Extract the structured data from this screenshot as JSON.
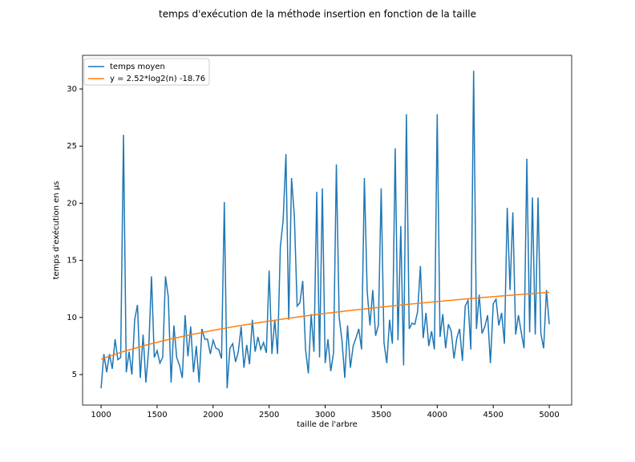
{
  "chart_data": {
    "type": "line",
    "title": "temps d'exécution de la méthode insertion en fonction de la taille",
    "x_label": "taille de l'arbre",
    "y_label": "temps d'exécution en µs",
    "xlim": [
      835,
      5200
    ],
    "ylim": [
      2.33,
      32.95
    ],
    "xticks": [
      1000,
      1500,
      2000,
      2500,
      3000,
      3500,
      4000,
      4500,
      5000
    ],
    "yticks": [
      5,
      10,
      15,
      20,
      25,
      30
    ],
    "legend": "upper left",
    "series": [
      {
        "name": "temps moyen",
        "color": "#1f77b4",
        "x": [
          1000,
          1025,
          1050,
          1075,
          1100,
          1125,
          1150,
          1175,
          1200,
          1225,
          1250,
          1275,
          1300,
          1325,
          1350,
          1375,
          1400,
          1425,
          1450,
          1475,
          1500,
          1525,
          1550,
          1575,
          1600,
          1625,
          1650,
          1675,
          1700,
          1725,
          1750,
          1775,
          1800,
          1825,
          1850,
          1875,
          1900,
          1925,
          1950,
          1975,
          2000,
          2025,
          2050,
          2075,
          2100,
          2125,
          2150,
          2175,
          2200,
          2225,
          2250,
          2275,
          2300,
          2325,
          2350,
          2375,
          2400,
          2425,
          2450,
          2475,
          2500,
          2525,
          2550,
          2575,
          2600,
          2625,
          2650,
          2675,
          2700,
          2725,
          2750,
          2775,
          2800,
          2825,
          2850,
          2875,
          2900,
          2925,
          2950,
          2975,
          3000,
          3025,
          3050,
          3075,
          3100,
          3125,
          3150,
          3175,
          3200,
          3225,
          3250,
          3275,
          3300,
          3325,
          3350,
          3375,
          3400,
          3425,
          3450,
          3475,
          3500,
          3525,
          3550,
          3575,
          3600,
          3625,
          3650,
          3675,
          3700,
          3725,
          3750,
          3775,
          3800,
          3825,
          3850,
          3875,
          3900,
          3925,
          3950,
          3975,
          4000,
          4025,
          4050,
          4075,
          4100,
          4125,
          4150,
          4175,
          4200,
          4225,
          4250,
          4275,
          4300,
          4325,
          4350,
          4375,
          4400,
          4425,
          4450,
          4475,
          4500,
          4525,
          4550,
          4575,
          4600,
          4625,
          4650,
          4675,
          4700,
          4725,
          4750,
          4775,
          4800,
          4825,
          4850,
          4875,
          4900,
          4925,
          4950,
          4975,
          5000
        ],
        "values": [
          3.8,
          6.8,
          5.2,
          6.8,
          5.5,
          8.1,
          6.3,
          6.5,
          26.0,
          5.2,
          7.0,
          5.0,
          9.8,
          11.1,
          4.7,
          8.5,
          4.3,
          7.2,
          13.6,
          6.5,
          7.1,
          6.0,
          6.5,
          13.6,
          11.8,
          4.3,
          9.3,
          6.5,
          5.8,
          4.7,
          10.2,
          6.6,
          9.2,
          5.2,
          7.5,
          4.3,
          9.0,
          8.1,
          8.1,
          6.8,
          8.0,
          7.3,
          7.2,
          6.4,
          20.1,
          3.8,
          7.3,
          7.7,
          6.1,
          7.0,
          9.2,
          5.6,
          7.6,
          5.9,
          9.8,
          7.0,
          8.3,
          7.2,
          7.8,
          6.9,
          14.1,
          6.8,
          9.8,
          6.8,
          16.2,
          18.5,
          24.3,
          9.8,
          22.2,
          18.9,
          11.0,
          11.3,
          13.2,
          7.2,
          5.1,
          10.3,
          7.0,
          21.0,
          6.5,
          21.3,
          6.0,
          8.1,
          5.3,
          6.9,
          23.4,
          10.0,
          8.0,
          4.7,
          9.3,
          5.6,
          7.5,
          8.2,
          9.0,
          7.2,
          22.2,
          12.3,
          9.3,
          12.4,
          8.4,
          9.3,
          21.3,
          7.8,
          6.0,
          9.8,
          7.7,
          24.8,
          8.0,
          18.0,
          5.8,
          27.8,
          9.0,
          9.5,
          9.4,
          10.5,
          14.5,
          8.2,
          10.4,
          7.5,
          8.8,
          7.2,
          27.8,
          8.3,
          10.3,
          7.3,
          9.4,
          8.8,
          6.4,
          8.2,
          9.0,
          6.2,
          11.0,
          11.5,
          7.2,
          31.6,
          9.0,
          12.0,
          8.6,
          9.2,
          10.2,
          6.0,
          11.2,
          11.6,
          9.3,
          10.4,
          7.7,
          19.6,
          12.4,
          19.2,
          8.5,
          10.2,
          8.7,
          7.3,
          23.9,
          8.7,
          20.5,
          8.5,
          20.5,
          8.6,
          7.3,
          12.4,
          9.4
        ]
      },
      {
        "name": "y = 2.52*log2(n) -18.76",
        "color": "#ff7f0e",
        "x": [
          1000,
          1200,
          1400,
          1600,
          1800,
          2000,
          2200,
          2400,
          2600,
          2800,
          3000,
          3200,
          3400,
          3600,
          3800,
          4000,
          4200,
          4400,
          4600,
          4800,
          5000
        ],
        "values": [
          6.35,
          7.02,
          7.58,
          8.06,
          8.49,
          8.87,
          9.22,
          9.54,
          9.83,
          10.1,
          10.35,
          10.58,
          10.8,
          11.01,
          11.21,
          11.39,
          11.57,
          11.74,
          11.9,
          12.06,
          12.21
        ]
      }
    ]
  }
}
